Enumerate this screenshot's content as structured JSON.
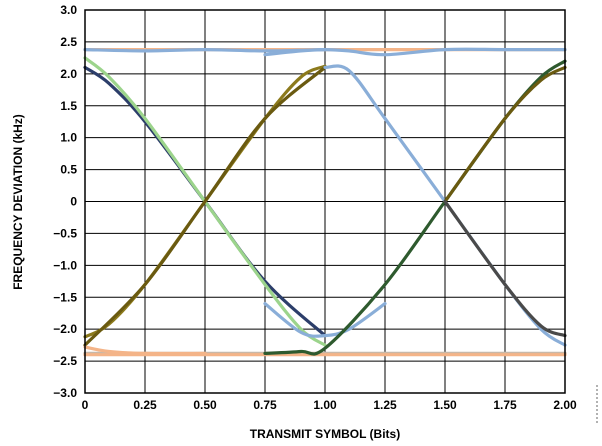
{
  "chart_data": {
    "type": "line",
    "title": "",
    "xlabel": "TRANSMIT SYMBOL (Bits)",
    "ylabel": "FREQUENCY DEVIATION (kHz)",
    "xlim": [
      0,
      2.0
    ],
    "ylim": [
      -3.0,
      3.0
    ],
    "x_ticks": [
      "0",
      "0.25",
      "0.50",
      "0.75",
      "1.00",
      "1.25",
      "1.50",
      "1.75",
      "2.00"
    ],
    "y_ticks": [
      "3.0",
      "2.5",
      "2.0",
      "1.5",
      "1.0",
      "0.5",
      "0",
      "−0.5",
      "−1.0",
      "−1.5",
      "−2.0",
      "−2.5",
      "−3.0"
    ],
    "grid": true,
    "legend": "none",
    "series": [
      {
        "color": "#f4b488",
        "x": [
          0,
          0.5,
          1.0,
          1.5,
          2.0
        ],
        "y": [
          2.38,
          2.38,
          2.38,
          2.38,
          2.38
        ]
      },
      {
        "color": "#c8b8a8",
        "x": [
          0,
          0.5,
          1.0,
          1.5,
          2.0
        ],
        "y": [
          -2.38,
          -2.38,
          -2.38,
          -2.38,
          -2.38
        ]
      },
      {
        "color": "#f4b488",
        "x": [
          0,
          0.5,
          1.0,
          1.5,
          2.0
        ],
        "y": [
          -2.4,
          -2.4,
          -2.4,
          -2.4,
          -2.4
        ]
      },
      {
        "color": "#2c3e6a",
        "x": [
          0,
          0.1,
          0.25,
          0.5,
          0.75,
          1.0
        ],
        "y": [
          2.1,
          1.85,
          1.25,
          0.0,
          -1.25,
          -2.1
        ]
      },
      {
        "color": "#9cd48c",
        "x": [
          0,
          0.1,
          0.25,
          0.5,
          0.75,
          0.9,
          1.0
        ],
        "y": [
          2.25,
          1.95,
          1.3,
          0.0,
          -1.3,
          -2.0,
          -2.25
        ]
      },
      {
        "color": "#8c7a1c",
        "x": [
          0,
          0.1,
          0.25,
          0.5,
          0.75,
          0.9,
          1.0
        ],
        "y": [
          -2.12,
          -1.92,
          -1.3,
          0.0,
          1.3,
          1.95,
          2.12
        ]
      },
      {
        "color": "#6a5a10",
        "x": [
          0,
          0.25,
          0.5,
          0.75,
          1.0
        ],
        "y": [
          -2.25,
          -1.3,
          0.0,
          1.3,
          2.1
        ]
      },
      {
        "color": "#8aaed8",
        "x": [
          0.75,
          0.9,
          1.0,
          1.1,
          1.25,
          1.5,
          1.75,
          2.0
        ],
        "y": [
          2.3,
          2.36,
          2.38,
          2.36,
          2.3,
          2.38,
          2.38,
          2.38
        ]
      },
      {
        "color": "#8aaed8",
        "x": [
          1.0,
          1.1,
          1.25,
          1.5,
          1.75,
          1.9,
          2.0
        ],
        "y": [
          2.1,
          2.05,
          1.3,
          0.0,
          -1.3,
          -2.0,
          -2.25
        ]
      },
      {
        "color": "#8aaed8",
        "x": [
          0,
          0.25,
          0.5,
          0.75,
          1.0
        ],
        "y": [
          2.38,
          2.36,
          2.38,
          2.36,
          2.38
        ]
      },
      {
        "color": "#8aaed8",
        "x": [
          0.75,
          0.9,
          1.0,
          1.1,
          1.25
        ],
        "y": [
          -1.6,
          -2.05,
          -2.1,
          -2.0,
          -1.6
        ]
      },
      {
        "color": "#2e5a2e",
        "x": [
          0.75,
          0.9,
          1.0,
          1.25,
          1.5,
          1.75,
          1.9,
          2.0
        ],
        "y": [
          -2.38,
          -2.35,
          -2.3,
          -1.3,
          0.0,
          1.3,
          1.95,
          2.2
        ]
      },
      {
        "color": "#6a5a10",
        "x": [
          1.5,
          1.75,
          1.9,
          2.0
        ],
        "y": [
          0.0,
          1.3,
          1.9,
          2.1
        ]
      },
      {
        "color": "#4a4a4a",
        "x": [
          1.5,
          1.75,
          1.9,
          2.0
        ],
        "y": [
          0.0,
          -1.3,
          -1.95,
          -2.1
        ]
      },
      {
        "color": "#f4b488",
        "x": [
          0,
          0.1,
          0.25,
          0.5
        ],
        "y": [
          -2.28,
          -2.35,
          -2.38,
          -2.38
        ]
      }
    ]
  }
}
